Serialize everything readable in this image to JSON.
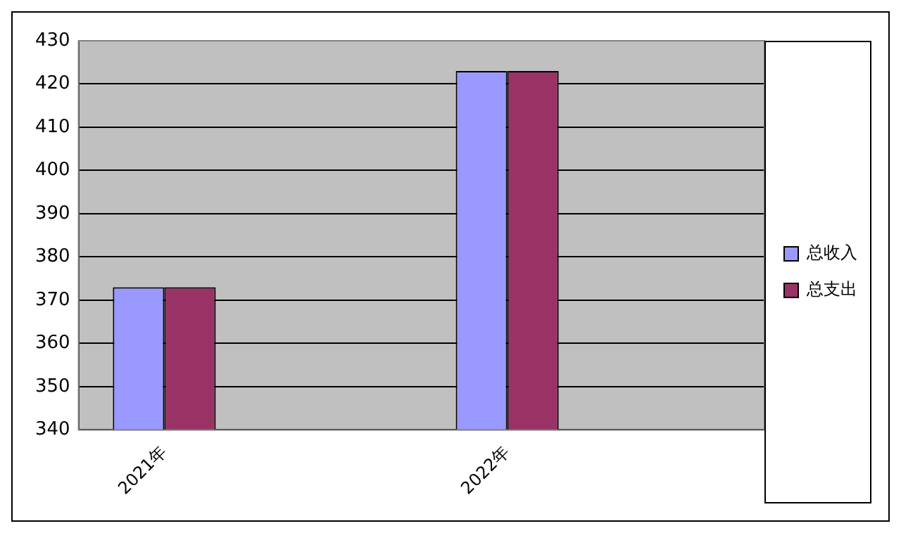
{
  "chart_data": {
    "type": "bar",
    "categories": [
      "2021年",
      null,
      "2022年",
      null
    ],
    "series": [
      {
        "name": "总收入",
        "color": "#9999ff",
        "values": [
          373,
          null,
          423,
          null
        ]
      },
      {
        "name": "总支出",
        "color": "#993366",
        "values": [
          373,
          null,
          423,
          null
        ]
      }
    ],
    "ylim": [
      340,
      430
    ],
    "yticks": [
      340,
      350,
      360,
      370,
      380,
      390,
      400,
      410,
      420,
      430
    ],
    "grid": "y",
    "legend": "right"
  }
}
